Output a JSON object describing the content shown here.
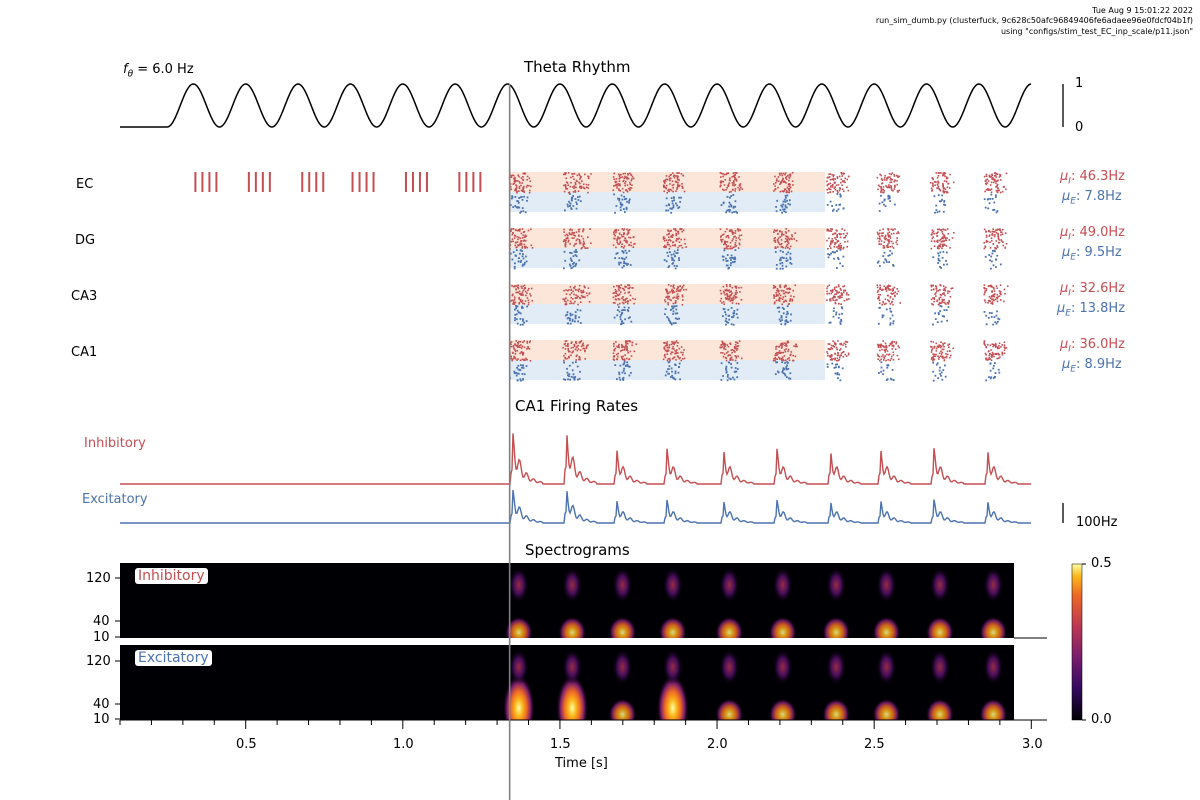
{
  "header": {
    "line1": "Tue Aug  9 15:01:22 2022",
    "line2": "run_sim_dumb.py (clusterfuck, 9c628c50afc96849406fe6adaee96e0fdcf04b1f)",
    "line3": "using \"configs/stim_test_EC_inp_scale/p11.json\""
  },
  "colors": {
    "inhibitory": "#c44e52",
    "excitatory": "#4c72b0",
    "inh_band": "#fbe6d9",
    "exc_band": "#e1ecf6"
  },
  "theta": {
    "title": "Theta Rhythm",
    "freq_label": "f",
    "freq_sub": "θ",
    "freq_value": " = 6.0 Hz",
    "scale_top": "1",
    "scale_bottom": "0"
  },
  "raster": {
    "areas": [
      {
        "name": "EC",
        "mu_i": "46.3Hz",
        "mu_e": "7.8Hz"
      },
      {
        "name": "DG",
        "mu_i": "49.0Hz",
        "mu_e": "9.5Hz"
      },
      {
        "name": "CA3",
        "mu_i": "32.6Hz",
        "mu_e": "13.8Hz"
      },
      {
        "name": "CA1",
        "mu_i": "36.0Hz",
        "mu_e": "8.9Hz"
      }
    ],
    "mu_i_symbol": "μ",
    "mu_i_sub": "I",
    "mu_e_symbol": "μ",
    "mu_e_sub": "E"
  },
  "rates": {
    "title": "CA1 Firing Rates",
    "inhibitory_label": "Inhibitory",
    "excitatory_label": "Excitatory",
    "scale_label": "100Hz"
  },
  "spectrogram": {
    "title": "Spectrograms",
    "panels": [
      {
        "label": "Inhibitory"
      },
      {
        "label": "Excitatory"
      }
    ],
    "yticks": [
      "120",
      "40",
      "10"
    ],
    "colorbar_max": "0.5",
    "colorbar_min": "0.0"
  },
  "xaxis": {
    "label": "Time [s]",
    "ticks": [
      "0.5",
      "1.0",
      "1.5",
      "2.0",
      "2.5",
      "3.0"
    ]
  },
  "chart_data": {
    "type": "line",
    "title": "Theta Rhythm",
    "xlabel": "Time [s]",
    "xlim": [
      0.1,
      3.05
    ],
    "stimulus_onset_s": 1.34,
    "theta": {
      "frequency_hz": 6.0,
      "start_s": 0.25,
      "ylim": [
        0,
        1
      ]
    },
    "ec_input_bursts_s": [
      0.34,
      0.51,
      0.68,
      0.84,
      1.01,
      1.18
    ],
    "ca1_rates": {
      "units": "Hz",
      "scale_bar_hz": 100,
      "inhibitory_peaks_s": [
        1.35,
        1.52,
        1.68,
        1.84,
        2.02,
        2.19,
        2.36,
        2.52,
        2.69,
        2.86
      ],
      "excitatory_peaks_s": [
        1.35,
        1.52,
        1.68,
        1.84,
        2.02,
        2.19,
        2.36,
        2.52,
        2.69,
        2.86
      ]
    },
    "raster_rates_hz": [
      {
        "area": "EC",
        "inhibitory": 46.3,
        "excitatory": 7.8
      },
      {
        "area": "DG",
        "inhibitory": 49.0,
        "excitatory": 9.5
      },
      {
        "area": "CA3",
        "inhibitory": 32.6,
        "excitatory": 13.8
      },
      {
        "area": "CA1",
        "inhibitory": 36.0,
        "excitatory": 8.9
      }
    ],
    "spectrogram": {
      "y_ticks_hz": [
        10,
        40,
        120
      ],
      "colorbar_range": [
        0.0,
        0.5
      ],
      "colormap": "inferno"
    }
  }
}
